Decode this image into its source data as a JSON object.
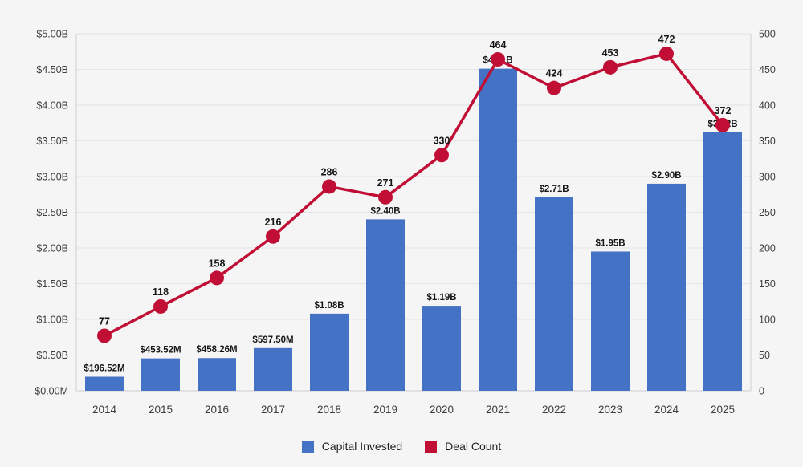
{
  "colors": {
    "bar": "#4472C4",
    "line": "#C00E35",
    "grid": "#e4e4e6",
    "axis_line": "#cfcfd4",
    "label_text": "#161616",
    "tick_text": "#3d3d3d",
    "background": "#f5f5f6"
  },
  "chart_data": {
    "type": "bar+line combo",
    "title": "",
    "categories": [
      "2014",
      "2015",
      "2016",
      "2017",
      "2018",
      "2019",
      "2020",
      "2021",
      "2022",
      "2023",
      "2024",
      "2025"
    ],
    "series": [
      {
        "name": "Capital Invested",
        "type": "bar",
        "axis": "left",
        "values_billions": [
          0.19652,
          0.45352,
          0.45826,
          0.5975,
          1.08,
          2.4,
          1.19,
          4.51,
          2.71,
          1.95,
          2.9,
          3.62
        ],
        "labels": [
          "$196.52M",
          "$453.52M",
          "$458.26M",
          "$597.50M",
          "$1.08B",
          "$2.40B",
          "$1.19B",
          "$4.51B",
          "$2.71B",
          "$1.95B",
          "$2.90B",
          "$3.62B"
        ]
      },
      {
        "name": "Deal Count",
        "type": "line",
        "axis": "right",
        "values": [
          77,
          118,
          158,
          216,
          286,
          271,
          330,
          464,
          424,
          453,
          472,
          372
        ],
        "labels": [
          "77",
          "118",
          "158",
          "216",
          "286",
          "271",
          "330",
          "464",
          "424",
          "453",
          "472",
          "372"
        ]
      }
    ],
    "left_axis": {
      "min": 0,
      "max": 5,
      "tick_labels": [
        "$0.00M",
        "$0.50B",
        "$1.00B",
        "$1.50B",
        "$2.00B",
        "$2.50B",
        "$3.00B",
        "$3.50B",
        "$4.00B",
        "$4.50B",
        "$5.00B"
      ]
    },
    "right_axis": {
      "min": 0,
      "max": 500,
      "tick_labels": [
        "0",
        "50",
        "100",
        "150",
        "200",
        "250",
        "300",
        "350",
        "400",
        "450",
        "500"
      ]
    },
    "grid": "horizontal",
    "legend_position": "bottom-center"
  }
}
